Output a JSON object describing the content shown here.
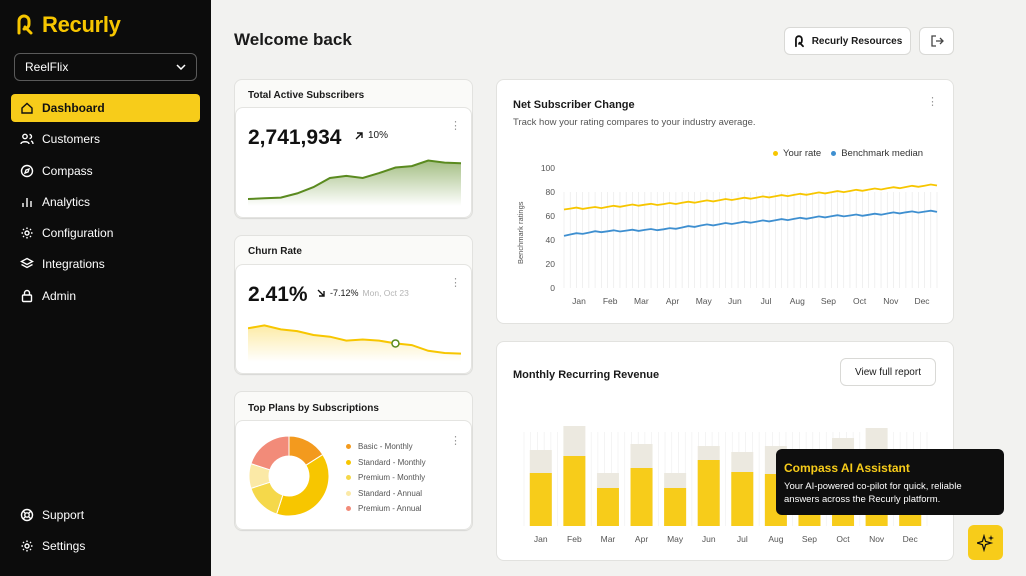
{
  "brand": {
    "name": "Recurly",
    "accent": "#f7cc1a"
  },
  "org_select": {
    "value": "ReelFlix"
  },
  "nav": [
    {
      "label": "Dashboard",
      "icon": "home-icon",
      "active": true
    },
    {
      "label": "Customers",
      "icon": "users-icon"
    },
    {
      "label": "Compass",
      "icon": "compass-icon"
    },
    {
      "label": "Analytics",
      "icon": "bar-chart-icon"
    },
    {
      "label": "Configuration",
      "icon": "gear-icon"
    },
    {
      "label": "Integrations",
      "icon": "layers-icon"
    },
    {
      "label": "Admin",
      "icon": "lock-icon"
    }
  ],
  "nav_bottom": [
    {
      "label": "Support",
      "icon": "lifebuoy-icon"
    },
    {
      "label": "Settings",
      "icon": "gear-icon"
    }
  ],
  "header": {
    "title": "Welcome back",
    "resources_label": "Recurly Resources"
  },
  "subscribers": {
    "title": "Total Active Subscribers",
    "value": "2,741,934",
    "delta": "10%"
  },
  "churn": {
    "title": "Churn Rate",
    "value": "2.41%",
    "delta": "-7.12%",
    "date": "Mon, Oct 23"
  },
  "plans": {
    "title": "Top Plans by Subscriptions",
    "items": [
      {
        "label": "Basic - Monthly",
        "color": "#f39a1e"
      },
      {
        "label": "Standard - Monthly",
        "color": "#f7c600"
      },
      {
        "label": "Premium - Monthly",
        "color": "#f5d84a"
      },
      {
        "label": "Standard - Annual",
        "color": "#fbe9a6"
      },
      {
        "label": "Premium - Annual",
        "color": "#f28b79"
      }
    ]
  },
  "net_change": {
    "title": "Net Subscriber Change",
    "subtitle": "Track how your rating compares to your industry average.",
    "legend_rate": "Your rate",
    "legend_bench": "Benchmark median"
  },
  "mrr": {
    "title": "Monthly Recurring Revenue",
    "view_label": "View full report"
  },
  "assistant": {
    "title": "Compass AI Assistant",
    "body": "Your AI-powered co-pilot for quick, reliable answers across the Recurly platform."
  },
  "chart_data": [
    {
      "type": "area",
      "title": "Total Active Subscribers",
      "values": [
        10,
        11,
        12,
        18,
        27,
        40,
        43,
        40,
        47,
        55,
        57,
        65,
        62,
        61
      ],
      "ylim": [
        0,
        80
      ],
      "color": "#5a8a1f"
    },
    {
      "type": "area",
      "title": "Churn Rate",
      "values": [
        60,
        65,
        58,
        55,
        48,
        45,
        38,
        40,
        38,
        33,
        30,
        20,
        16,
        15
      ],
      "ylim": [
        0,
        80
      ],
      "highlight_index": 9,
      "color": "#f7c600"
    },
    {
      "type": "pie",
      "title": "Top Plans by Subscriptions",
      "categories": [
        "Basic - Monthly",
        "Standard - Monthly",
        "Premium - Monthly",
        "Standard - Annual",
        "Premium - Annual"
      ],
      "values": [
        16,
        39,
        15,
        10,
        20
      ]
    },
    {
      "type": "line",
      "title": "Net Subscriber Change",
      "ylabel": "Benchmark ratings",
      "categories": [
        "Jan",
        "Feb",
        "Mar",
        "Apr",
        "May",
        "Jun",
        "Jul",
        "Aug",
        "Sep",
        "Oct",
        "Nov",
        "Dec"
      ],
      "yticks": [
        0,
        20,
        40,
        60,
        80,
        100
      ],
      "ylim": [
        0,
        100
      ],
      "legend": "top-right",
      "series": [
        {
          "name": "Your rate",
          "color": "#f7c600",
          "values": [
            66,
            67,
            69,
            70,
            72,
            74,
            76,
            78,
            80,
            82,
            84,
            86
          ]
        },
        {
          "name": "Benchmark median",
          "color": "#3e8fd0",
          "values": [
            44,
            47,
            48,
            49,
            52,
            54,
            56,
            58,
            60,
            61,
            63,
            64
          ]
        }
      ]
    },
    {
      "type": "bar",
      "title": "Monthly Recurring Revenue",
      "categories": [
        "Jan",
        "Feb",
        "Mar",
        "Apr",
        "May",
        "Jun",
        "Jul",
        "Aug",
        "Sep",
        "Oct",
        "Nov",
        "Dec"
      ],
      "series": [
        {
          "name": "",
          "color": "#f7cc1a",
          "values": [
            53,
            70,
            38,
            58,
            38,
            66,
            54,
            52,
            40,
            56,
            62,
            38
          ]
        },
        {
          "name": "",
          "color": "#ece9e0",
          "values": [
            76,
            100,
            53,
            82,
            53,
            80,
            74,
            80,
            66,
            88,
            98,
            68
          ]
        }
      ],
      "ylim": [
        0,
        100
      ]
    }
  ]
}
